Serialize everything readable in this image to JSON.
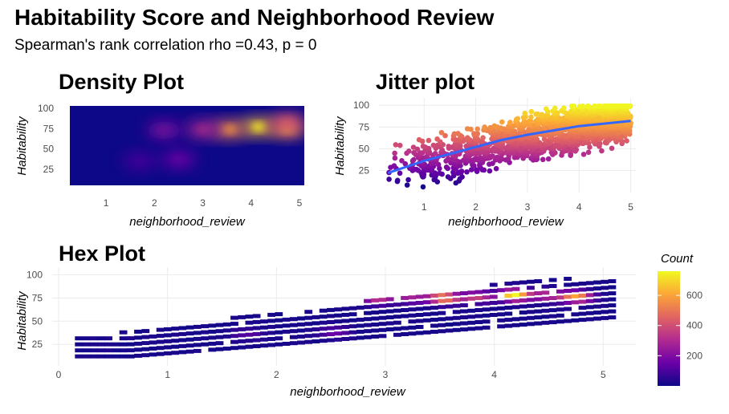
{
  "title": "Habitability Score and Neighborhood Review",
  "subtitle": "Spearman's rank correlation rho =0.43, p = 0",
  "chart_data": [
    {
      "id": "density",
      "type": "heatmap",
      "title": "Density Plot",
      "xlabel": "neighborhood_review",
      "ylabel": "Habitability",
      "xticks": [
        "1",
        "2",
        "3",
        "4",
        "5"
      ],
      "yticks": [
        "25",
        "50",
        "75",
        "100"
      ],
      "xlim": [
        0.25,
        5.1
      ],
      "ylim": [
        5,
        103
      ],
      "hotspots": [
        {
          "x": 4.15,
          "y": 77,
          "intensity": 1.0
        },
        {
          "x": 3.55,
          "y": 74,
          "intensity": 0.8
        },
        {
          "x": 4.75,
          "y": 75,
          "intensity": 0.85
        },
        {
          "x": 4.75,
          "y": 82,
          "intensity": 0.6
        },
        {
          "x": 3.0,
          "y": 74,
          "intensity": 0.45
        },
        {
          "x": 2.2,
          "y": 73,
          "intensity": 0.3
        },
        {
          "x": 2.5,
          "y": 37,
          "intensity": 0.25
        },
        {
          "x": 1.7,
          "y": 35,
          "intensity": 0.15
        }
      ]
    },
    {
      "id": "jitter",
      "type": "scatter",
      "title": "Jitter plot",
      "xlabel": "neighborhood_review",
      "ylabel": "Habitability",
      "xticks": [
        "1",
        "2",
        "3",
        "4",
        "5"
      ],
      "yticks": [
        "25",
        "50",
        "75",
        "100"
      ],
      "xlim": [
        0.25,
        5.1
      ],
      "ylim": [
        5,
        103
      ],
      "smooth": [
        [
          0.3,
          22
        ],
        [
          1.0,
          36
        ],
        [
          1.5,
          44
        ],
        [
          2.0,
          52
        ],
        [
          2.5,
          60
        ],
        [
          3.0,
          66
        ],
        [
          3.5,
          71
        ],
        [
          4.0,
          76
        ],
        [
          4.5,
          79
        ],
        [
          5.0,
          82
        ]
      ]
    },
    {
      "id": "hex",
      "type": "heatmap",
      "title": "Hex Plot",
      "xlabel": "neighborhood_review",
      "ylabel": "Habitability",
      "xticks": [
        "0",
        "1",
        "2",
        "3",
        "4",
        "5"
      ],
      "yticks": [
        "25",
        "50",
        "75",
        "100"
      ],
      "xlim": [
        0,
        5.3
      ],
      "ylim": [
        7,
        103
      ],
      "legend_title": "Count",
      "legend_ticks": [
        "200",
        "400",
        "600"
      ],
      "count_range": [
        0,
        760
      ],
      "hotspots": [
        {
          "x": 4.15,
          "y": 78,
          "count": 760
        },
        {
          "x": 3.5,
          "y": 75,
          "count": 620
        },
        {
          "x": 4.72,
          "y": 76,
          "count": 600
        },
        {
          "x": 3.8,
          "y": 76,
          "count": 360
        },
        {
          "x": 2.9,
          "y": 74,
          "count": 320
        },
        {
          "x": 4.45,
          "y": 78,
          "count": 330
        },
        {
          "x": 3.2,
          "y": 75,
          "count": 260
        },
        {
          "x": 2.2,
          "y": 72,
          "count": 180
        },
        {
          "x": 2.5,
          "y": 38,
          "count": 150
        },
        {
          "x": 1.7,
          "y": 36,
          "count": 110
        }
      ]
    }
  ]
}
